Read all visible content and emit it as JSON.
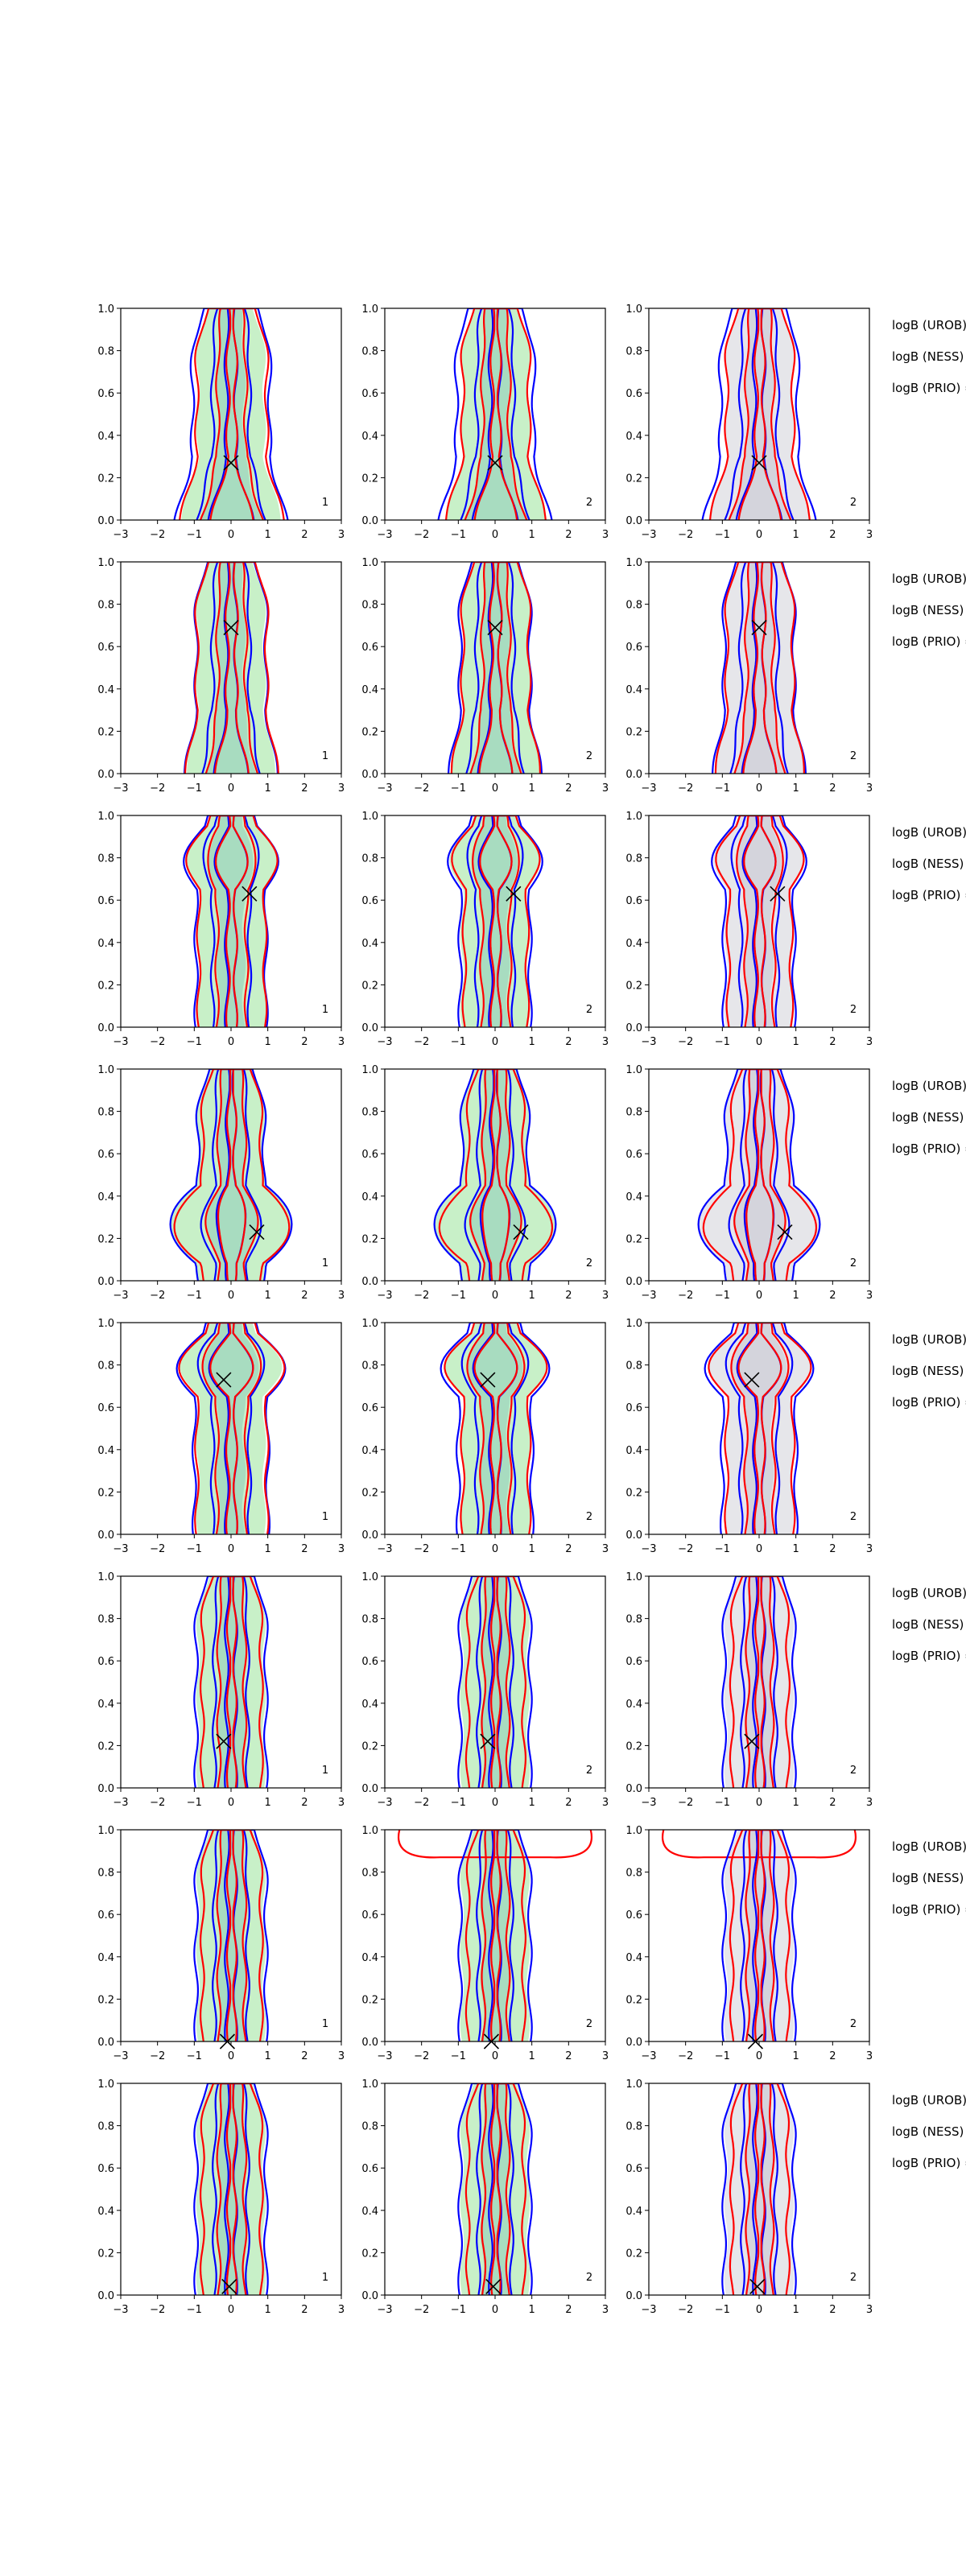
{
  "chart_data": {
    "type": "contour-grid",
    "rows": 8,
    "cols": 3,
    "xlim": [
      -3,
      3
    ],
    "ylim": [
      0,
      1
    ],
    "xticks": [
      "−3",
      "−2",
      "−1",
      "0",
      "1",
      "2",
      "3"
    ],
    "yticks": [
      "0.0",
      "0.2",
      "0.4",
      "0.6",
      "0.8",
      "1.0"
    ],
    "grid": false,
    "colors": {
      "blue": "#0000ff",
      "red": "#ff0000",
      "green_fill": "#c8f0c8",
      "green_fill_dark": "#a8dcc0",
      "gray_fill": "#e6e6ea",
      "marker": "#000000"
    },
    "col_fill": [
      "green",
      "green",
      "gray"
    ],
    "panel_labels": [
      "1",
      "2",
      "2"
    ],
    "side_labels": [
      "logB (UROB) =",
      "logB (NESS) =",
      "logB (PRIO) ="
    ],
    "rows_data": [
      {
        "marker": [
          0.0,
          0.27
        ],
        "blue": [
          1.05,
          0.5,
          0.13
        ],
        "red": [
          0.95,
          0.38,
          0.1
        ],
        "fill": [
          0.9,
          0.35,
          0.0
        ],
        "bulge_bottom": 0.15
      },
      {
        "marker": [
          0.0,
          0.69
        ],
        "blue": [
          0.95,
          0.5,
          0.13
        ],
        "red": [
          0.95,
          0.38,
          0.12
        ],
        "fill": [
          0.9,
          0.35,
          0.0
        ],
        "bulge_bottom": 0.1
      },
      {
        "marker": [
          0.5,
          0.63
        ],
        "blue": [
          0.95,
          0.5,
          0.12
        ],
        "red": [
          0.9,
          0.4,
          0.1
        ],
        "fill": [
          0.9,
          0.35,
          0.0
        ],
        "bulge_top": 0.1
      },
      {
        "marker": [
          0.7,
          0.23
        ],
        "blue": [
          0.9,
          0.45,
          0.1
        ],
        "red": [
          0.8,
          0.35,
          0.08
        ],
        "fill": [
          0.9,
          0.35,
          0.0
        ],
        "bulge_mid": 0.8
      },
      {
        "marker": [
          -0.2,
          0.73
        ],
        "blue": [
          1.0,
          0.5,
          0.12
        ],
        "red": [
          0.95,
          0.4,
          0.1
        ],
        "fill": [
          0.9,
          0.35,
          0.0
        ],
        "bulge_top": 0.15
      },
      {
        "marker": [
          -0.2,
          0.22
        ],
        "blue": [
          0.95,
          0.45,
          0.12
        ],
        "red": [
          0.8,
          0.35,
          0.08
        ],
        "fill": [
          0.9,
          0.35,
          0.0
        ]
      },
      {
        "marker": [
          -0.1,
          0.0
        ],
        "blue": [
          0.95,
          0.45,
          0.12
        ],
        "red": [
          0.8,
          0.35,
          0.08
        ],
        "fill": [
          0.9,
          0.35,
          0.0
        ],
        "cap_top": 2.5
      },
      {
        "marker": [
          -0.05,
          0.04
        ],
        "blue": [
          0.95,
          0.45,
          0.12
        ],
        "red": [
          0.8,
          0.35,
          0.08
        ],
        "fill": [
          0.9,
          0.35,
          0.0
        ]
      }
    ]
  }
}
